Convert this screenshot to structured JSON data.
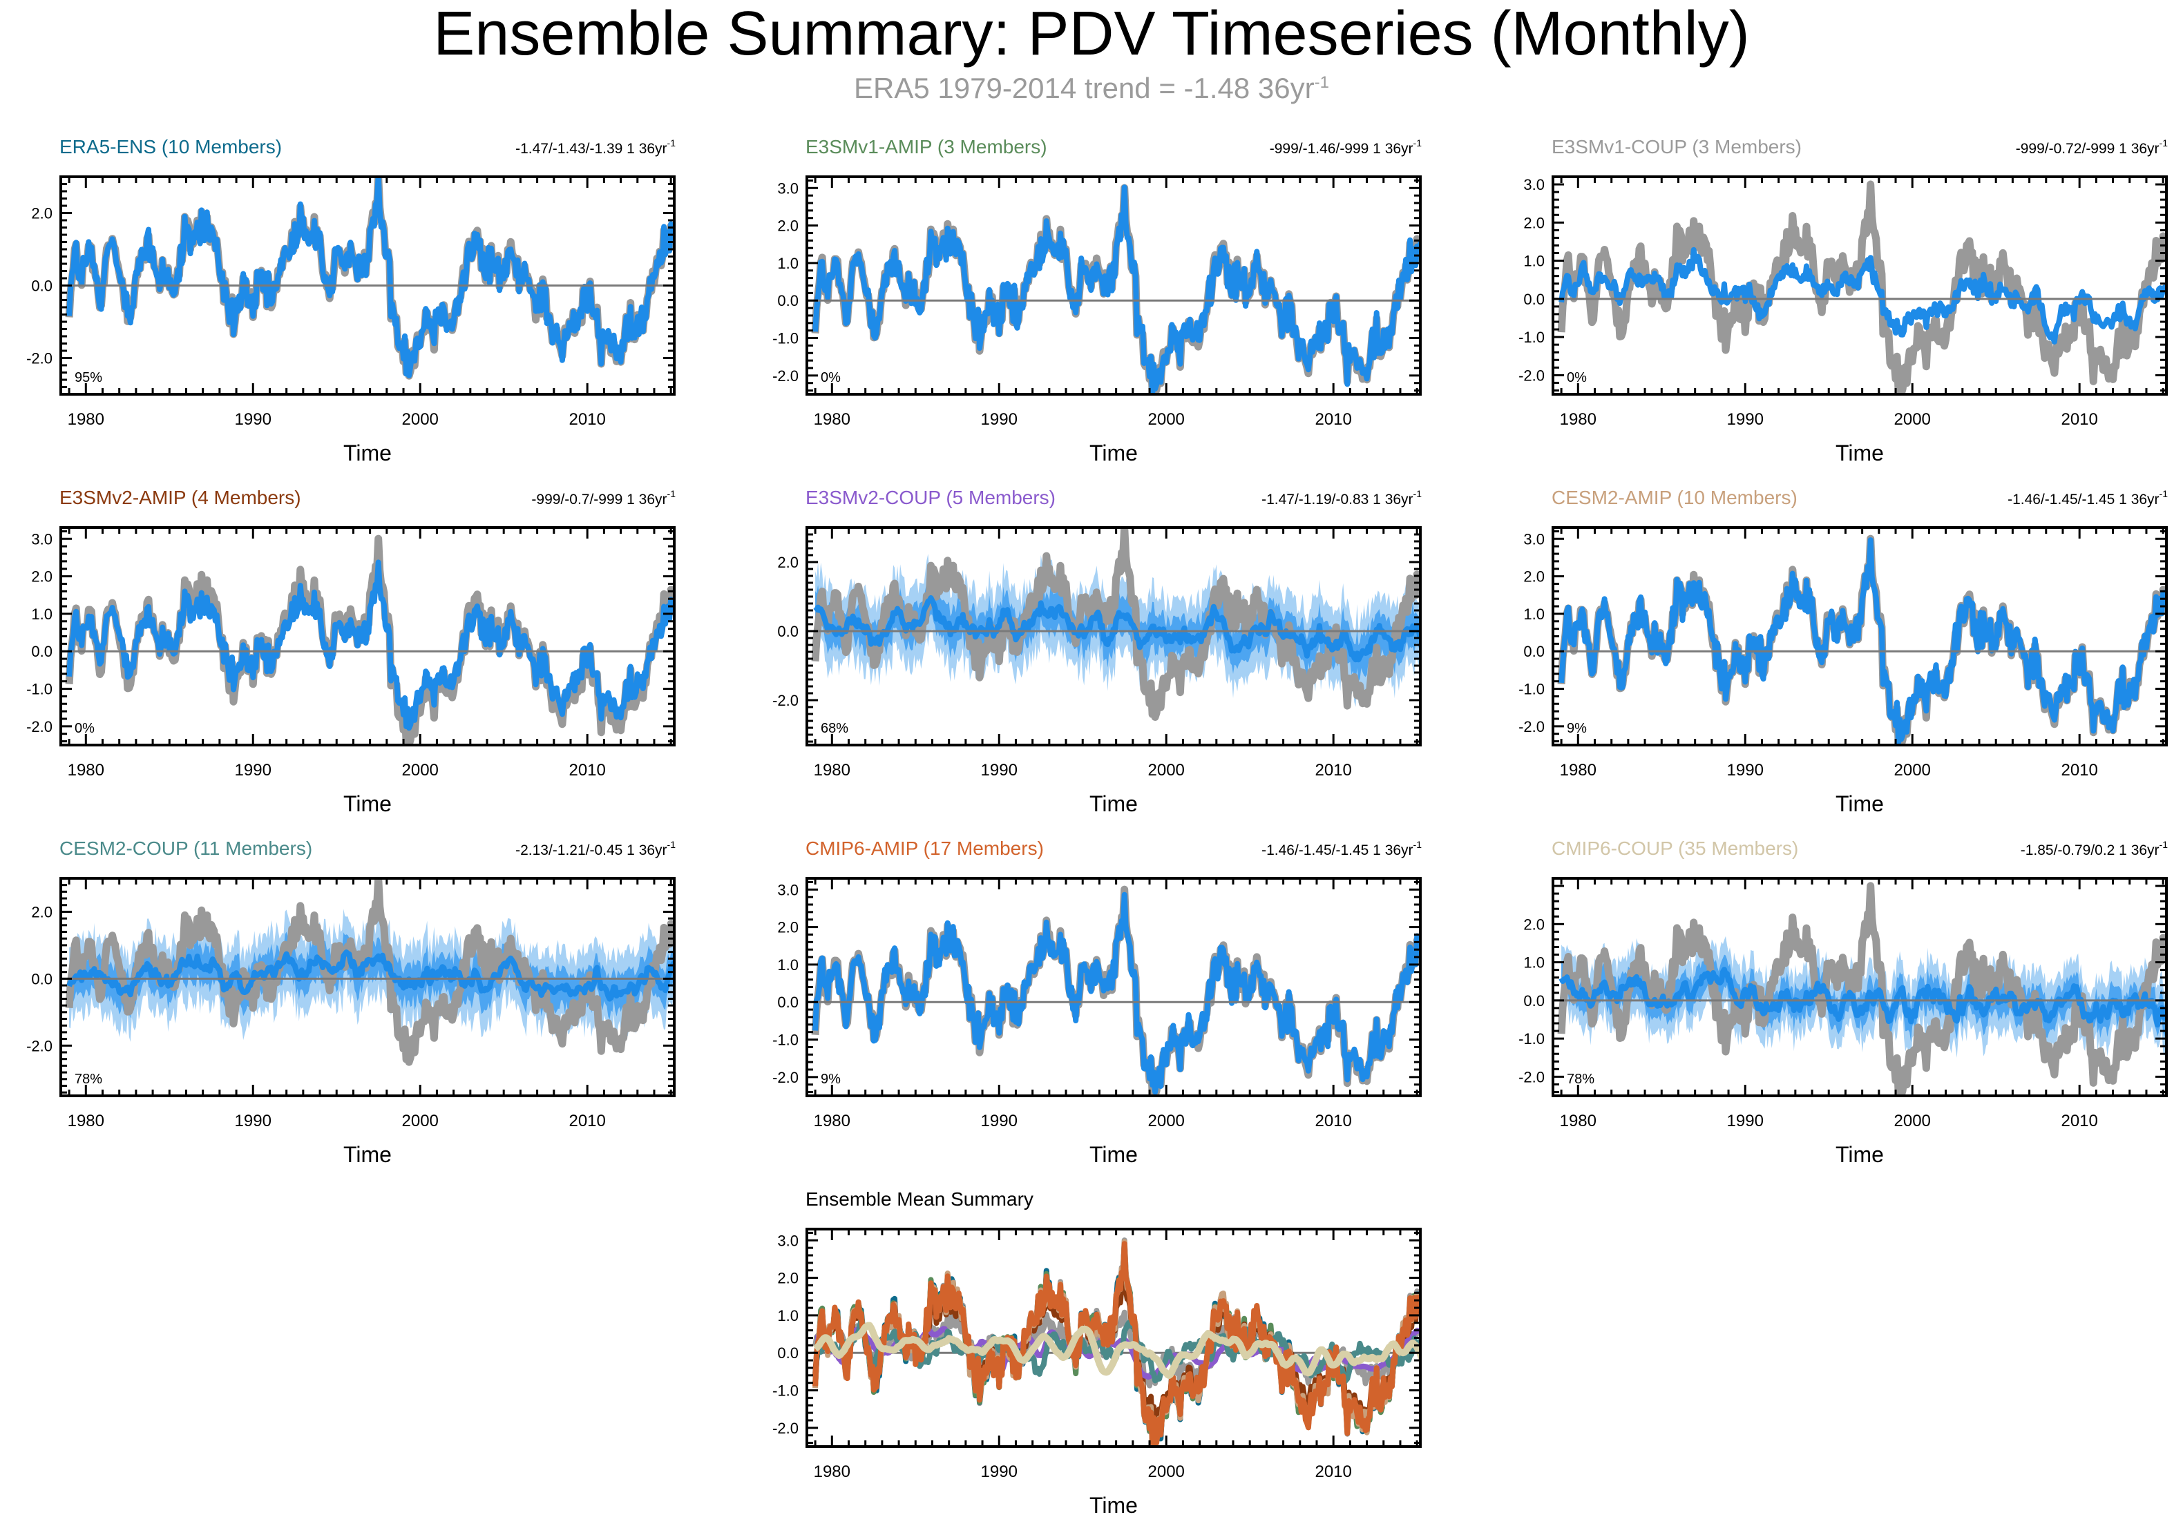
{
  "figure": {
    "title": "Ensemble Summary: PDV Timeseries (Monthly)",
    "subtitle_main": "ERA5 1979-2014 trend = -1.48 36yr",
    "subtitle_sup": "-1",
    "x_label": "Time",
    "x_ticks": [
      "1980",
      "1990",
      "2000",
      "2010"
    ],
    "trend_unit_sup": "-1"
  },
  "colors": {
    "obs": "#999999",
    "ens_mean": "#1e8be8",
    "spread_outer": "#a6d1f5",
    "spread_inner": "#3d9ef0",
    "zero_line": "#7a7a7a"
  },
  "chart_data": [
    {
      "type": "line",
      "panel": "era5-ens",
      "title": "ERA5-ENS (10 Members)",
      "title_color": "#0e6b8c",
      "trend": "-1.47/-1.43/-1.39 1 36yr",
      "pct": "95%",
      "spread": "none",
      "fit": 0.98,
      "xlim": [
        1978.5,
        2015.2
      ],
      "ylim": [
        -3.0,
        3.0
      ],
      "yticks": [
        "2.0",
        "0.0",
        "-2.0"
      ],
      "ytick_values": [
        2,
        0,
        -2
      ],
      "xlabel": "Time"
    },
    {
      "type": "line",
      "panel": "e3smv1-amip",
      "title": "E3SMv1-AMIP (3 Members)",
      "title_color": "#5a8c5a",
      "trend": "-999/-1.46/-999 1 36yr",
      "pct": "0%",
      "spread": "none",
      "fit": 0.97,
      "xlim": [
        1978.5,
        2015.2
      ],
      "ylim": [
        -2.5,
        3.3
      ],
      "yticks": [
        "3.0",
        "2.0",
        "1.0",
        "0.0",
        "-1.0",
        "-2.0"
      ],
      "ytick_values": [
        3,
        2,
        1,
        0,
        -1,
        -2
      ],
      "xlabel": "Time"
    },
    {
      "type": "line",
      "panel": "e3smv1-coup",
      "title": "E3SMv1-COUP (3 Members)",
      "title_color": "#9a9a9a",
      "trend": "-999/-0.72/-999 1 36yr",
      "pct": "0%",
      "spread": "none",
      "fit": 0.35,
      "xlim": [
        1978.5,
        2015.2
      ],
      "ylim": [
        -2.5,
        3.2
      ],
      "yticks": [
        "3.0",
        "2.0",
        "1.0",
        "0.0",
        "-1.0",
        "-2.0"
      ],
      "ytick_values": [
        3,
        2,
        1,
        0,
        -1,
        -2
      ],
      "xlabel": "Time"
    },
    {
      "type": "line",
      "panel": "e3smv2-amip",
      "title": "E3SMv2-AMIP (4 Members)",
      "title_color": "#8b3a0f",
      "trend": "-999/-0.7/-999 1 36yr",
      "pct": "0%",
      "spread": "none",
      "fit": 0.8,
      "xlim": [
        1978.5,
        2015.2
      ],
      "ylim": [
        -2.5,
        3.3
      ],
      "yticks": [
        "3.0",
        "2.0",
        "1.0",
        "0.0",
        "-1.0",
        "-2.0"
      ],
      "ytick_values": [
        3,
        2,
        1,
        0,
        -1,
        -2
      ],
      "xlabel": "Time"
    },
    {
      "type": "line",
      "panel": "e3smv2-coup",
      "title": "E3SMv2-COUP (5 Members)",
      "title_color": "#8a5acd",
      "trend": "-1.47/-1.19/-0.83 1 36yr",
      "pct": "68%",
      "spread": "wide",
      "fit": 0.15,
      "xlim": [
        1978.5,
        2015.2
      ],
      "ylim": [
        -3.3,
        3.0
      ],
      "yticks": [
        "2.0",
        "0.0",
        "-2.0"
      ],
      "ytick_values": [
        2,
        0,
        -2
      ],
      "xlabel": "Time"
    },
    {
      "type": "line",
      "panel": "cesm2-amip",
      "title": "CESM2-AMIP (10 Members)",
      "title_color": "#c8a07c",
      "trend": "-1.46/-1.45/-1.45 1 36yr",
      "pct": "9%",
      "spread": "none",
      "fit": 0.97,
      "xlim": [
        1978.5,
        2015.2
      ],
      "ylim": [
        -2.5,
        3.3
      ],
      "yticks": [
        "3.0",
        "2.0",
        "1.0",
        "0.0",
        "-1.0",
        "-2.0"
      ],
      "ytick_values": [
        3,
        2,
        1,
        0,
        -1,
        -2
      ],
      "xlabel": "Time"
    },
    {
      "type": "line",
      "panel": "cesm2-coup",
      "title": "CESM2-COUP (11 Members)",
      "title_color": "#4a8a8a",
      "trend": "-2.13/-1.21/-0.45 1 36yr",
      "pct": "78%",
      "spread": "wide",
      "fit": 0.1,
      "xlim": [
        1978.5,
        2015.2
      ],
      "ylim": [
        -3.5,
        3.0
      ],
      "yticks": [
        "2.0",
        "0.0",
        "-2.0"
      ],
      "ytick_values": [
        2,
        0,
        -2
      ],
      "xlabel": "Time"
    },
    {
      "type": "line",
      "panel": "cmip6-amip",
      "title": "CMIP6-AMIP (17 Members)",
      "title_color": "#d2632c",
      "trend": "-1.46/-1.45/-1.45 1 36yr",
      "pct": "9%",
      "spread": "none",
      "fit": 0.97,
      "xlim": [
        1978.5,
        2015.2
      ],
      "ylim": [
        -2.5,
        3.3
      ],
      "yticks": [
        "3.0",
        "2.0",
        "1.0",
        "0.0",
        "-1.0",
        "-2.0"
      ],
      "ytick_values": [
        3,
        2,
        1,
        0,
        -1,
        -2
      ],
      "xlabel": "Time"
    },
    {
      "type": "line",
      "panel": "cmip6-coup",
      "title": "CMIP6-COUP (35 Members)",
      "title_color": "#d2c6a8",
      "trend": "-1.85/-0.79/0.2 1 36yr",
      "pct": "78%",
      "spread": "medium",
      "fit": 0.05,
      "xlim": [
        1978.5,
        2015.2
      ],
      "ylim": [
        -2.5,
        3.2
      ],
      "yticks": [
        "2.0",
        "1.0",
        "0.0",
        "-1.0",
        "-2.0"
      ],
      "ytick_values": [
        2,
        1,
        0,
        -1,
        -2
      ],
      "xlabel": "Time"
    },
    {
      "type": "line",
      "panel": "ensemble-mean-summary",
      "title": "Ensemble Mean Summary",
      "title_color": "#000000",
      "trend": "",
      "pct": "",
      "spread": "none",
      "fit": 0.9,
      "summary": true,
      "series": [
        {
          "name": "ERA5",
          "color": "#999999"
        },
        {
          "name": "ERA5-ENS",
          "color": "#0e6b8c"
        },
        {
          "name": "E3SMv1-AMIP",
          "color": "#5a8c5a"
        },
        {
          "name": "E3SMv1-COUP",
          "color": "#9a9a9a"
        },
        {
          "name": "E3SMv2-AMIP",
          "color": "#8b3a0f"
        },
        {
          "name": "E3SMv2-COUP",
          "color": "#8a5acd"
        },
        {
          "name": "CESM2-AMIP",
          "color": "#c8a07c"
        },
        {
          "name": "CESM2-COUP",
          "color": "#4a8a8a"
        },
        {
          "name": "CMIP6-AMIP",
          "color": "#d2632c"
        },
        {
          "name": "CMIP6-COUP",
          "color": "#d8d0a8"
        }
      ],
      "xlim": [
        1978.5,
        2015.2
      ],
      "ylim": [
        -2.5,
        3.3
      ],
      "yticks": [
        "3.0",
        "2.0",
        "1.0",
        "0.0",
        "-1.0",
        "-2.0"
      ],
      "ytick_values": [
        3,
        2,
        1,
        0,
        -1,
        -2
      ],
      "xlabel": "Time"
    }
  ]
}
